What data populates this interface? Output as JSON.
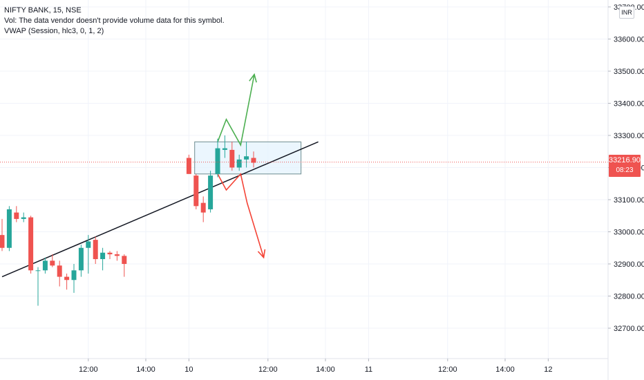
{
  "legend": {
    "symbol_line": "NIFTY BANK, 15, NSE",
    "volume_line": "Vol: The data vendor doesn't provide volume data for this symbol.",
    "vwap_line": "VWAP (Session, hlc3, 0, 1, 2)"
  },
  "currency_badge": "INR",
  "last_price": {
    "value": "33216.90",
    "countdown": "08:23"
  },
  "colors": {
    "up": "#26a69a",
    "down": "#ef5350",
    "grid": "#f0f3fa",
    "trendline": "#131722",
    "arrow_up": "#4caf50",
    "arrow_down": "#f44336",
    "box_fill": "#e3f2fd",
    "box_stroke": "#6d8c8f"
  },
  "chart_data": {
    "type": "candlestick",
    "y_ticks": [
      "32700.00",
      "32800.00",
      "32900.00",
      "33000.00",
      "33100.00",
      "33200.00",
      "33300.00",
      "33400.00",
      "33500.00",
      "33600.00",
      "33700.00"
    ],
    "ylim": [
      32600,
      33760
    ],
    "x_ticks": [
      {
        "label": "12:00",
        "x": 12
      },
      {
        "label": "14:00",
        "x": 20
      },
      {
        "label": "10",
        "x": 26
      },
      {
        "label": "12:00",
        "x": 37
      },
      {
        "label": "14:00",
        "x": 45
      },
      {
        "label": "11",
        "x": 51
      },
      {
        "label": "12:00",
        "x": 62
      },
      {
        "label": "14:00",
        "x": 70
      },
      {
        "label": "12",
        "x": 76
      }
    ],
    "xlim": [
      0,
      87.5
    ],
    "candles": [
      {
        "x": 0,
        "o": 32990,
        "h": 33040,
        "l": 32940,
        "c": 32950
      },
      {
        "x": 1,
        "o": 32950,
        "h": 33080,
        "l": 32940,
        "c": 33070
      },
      {
        "x": 2,
        "o": 33060,
        "h": 33080,
        "l": 33030,
        "c": 33040
      },
      {
        "x": 3,
        "o": 33040,
        "h": 33060,
        "l": 33030,
        "c": 33045
      },
      {
        "x": 4,
        "o": 33045,
        "h": 33050,
        "l": 32870,
        "c": 32880
      },
      {
        "x": 5,
        "o": 32880,
        "h": 32890,
        "l": 32770,
        "c": 32880
      },
      {
        "x": 6,
        "o": 32880,
        "h": 32920,
        "l": 32870,
        "c": 32910
      },
      {
        "x": 7,
        "o": 32910,
        "h": 32930,
        "l": 32890,
        "c": 32895
      },
      {
        "x": 8,
        "o": 32895,
        "h": 32910,
        "l": 32830,
        "c": 32860
      },
      {
        "x": 9,
        "o": 32860,
        "h": 32870,
        "l": 32820,
        "c": 32850
      },
      {
        "x": 10,
        "o": 32850,
        "h": 32900,
        "l": 32810,
        "c": 32880
      },
      {
        "x": 11,
        "o": 32880,
        "h": 32960,
        "l": 32860,
        "c": 32950
      },
      {
        "x": 12,
        "o": 32950,
        "h": 32990,
        "l": 32870,
        "c": 32970
      },
      {
        "x": 13,
        "o": 32975,
        "h": 32985,
        "l": 32900,
        "c": 32915
      },
      {
        "x": 14,
        "o": 32915,
        "h": 32950,
        "l": 32880,
        "c": 32935
      },
      {
        "x": 15,
        "o": 32935,
        "h": 32940,
        "l": 32915,
        "c": 32930
      },
      {
        "x": 16,
        "o": 32930,
        "h": 32940,
        "l": 32910,
        "c": 32925
      },
      {
        "x": 17,
        "o": 32925,
        "h": 32930,
        "l": 32860,
        "c": 32900
      },
      {
        "x": 26,
        "o": 33230,
        "h": 33240,
        "l": 33180,
        "c": 33180
      },
      {
        "x": 27,
        "o": 33175,
        "h": 33180,
        "l": 33070,
        "c": 33080
      },
      {
        "x": 28,
        "o": 33090,
        "h": 33110,
        "l": 33030,
        "c": 33060
      },
      {
        "x": 29,
        "o": 33070,
        "h": 33190,
        "l": 33060,
        "c": 33175
      },
      {
        "x": 30,
        "o": 33180,
        "h": 33290,
        "l": 33170,
        "c": 33260
      },
      {
        "x": 31,
        "o": 33255,
        "h": 33300,
        "l": 33230,
        "c": 33260
      },
      {
        "x": 32,
        "o": 33255,
        "h": 33280,
        "l": 33190,
        "c": 33200
      },
      {
        "x": 33,
        "o": 33200,
        "h": 33240,
        "l": 33190,
        "c": 33225
      },
      {
        "x": 34,
        "o": 33225,
        "h": 33280,
        "l": 33200,
        "c": 33235
      },
      {
        "x": 35,
        "o": 33230,
        "h": 33250,
        "l": 33200,
        "c": 33215
      }
    ],
    "drawings": {
      "trendline": [
        [
          0,
          32860
        ],
        [
          44,
          33280
        ]
      ],
      "box": {
        "x0": 26.8,
        "x1": 41.6,
        "y0": 33180,
        "y1": 33280
      },
      "arrow_up": [
        [
          30,
          33280
        ],
        [
          31.2,
          33350
        ],
        [
          33.2,
          33270
        ],
        [
          35.1,
          33490
        ]
      ],
      "arrow_down": [
        [
          30,
          33180
        ],
        [
          31.2,
          33130
        ],
        [
          33.2,
          33180
        ],
        [
          34.1,
          33090
        ],
        [
          36.4,
          32920
        ]
      ]
    }
  }
}
